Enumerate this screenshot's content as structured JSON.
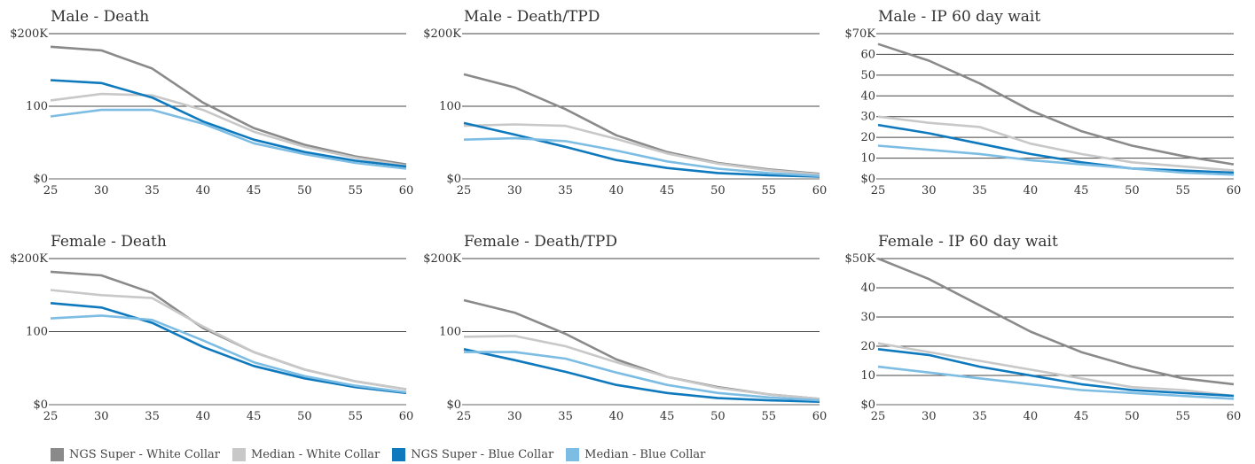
{
  "legend": [
    {
      "label": "NGS Super - White Collar",
      "color": "#8a8a8a"
    },
    {
      "label": "Median - White Collar",
      "color": "#c8c8c8"
    },
    {
      "label": "NGS Super - Blue Collar",
      "color": "#0f79bd"
    },
    {
      "label": "Median - Blue Collar",
      "color": "#7dbde3"
    }
  ],
  "chart_data": [
    {
      "type": "line",
      "title": "Male - Death",
      "x": [
        25,
        30,
        35,
        40,
        45,
        50,
        55,
        60
      ],
      "x_tick_labels": [
        "25",
        "30",
        "35",
        "40",
        "45",
        "50",
        "55",
        "60"
      ],
      "ylim": [
        0,
        200
      ],
      "y_ticks": [
        0,
        100,
        200
      ],
      "y_tick_labels": [
        "$0",
        "100",
        "$200K"
      ],
      "series": [
        {
          "name": "NGS Super - White Collar",
          "values": [
            182,
            177,
            152,
            105,
            70,
            47,
            31,
            20
          ]
        },
        {
          "name": "Median - White Collar",
          "values": [
            108,
            117,
            115,
            95,
            65,
            44,
            29,
            18
          ]
        },
        {
          "name": "NGS Super - Blue Collar",
          "values": [
            136,
            132,
            112,
            79,
            54,
            37,
            25,
            17
          ]
        },
        {
          "name": "Median - Blue Collar",
          "values": [
            86,
            95,
            95,
            76,
            49,
            34,
            22,
            14
          ]
        }
      ]
    },
    {
      "type": "line",
      "title": "Male - Death/TPD",
      "x": [
        25,
        30,
        35,
        40,
        45,
        50,
        55,
        60
      ],
      "x_tick_labels": [
        "25",
        "30",
        "35",
        "40",
        "45",
        "50",
        "55",
        "60"
      ],
      "ylim": [
        0,
        200
      ],
      "y_ticks": [
        0,
        100,
        200
      ],
      "y_tick_labels": [
        "$0",
        "100",
        "$200K"
      ],
      "series": [
        {
          "name": "NGS Super - White Collar",
          "values": [
            144,
            126,
            96,
            60,
            37,
            22,
            13,
            7
          ]
        },
        {
          "name": "Median - White Collar",
          "values": [
            73,
            75,
            73,
            55,
            35,
            21,
            12,
            6
          ]
        },
        {
          "name": "NGS Super - Blue Collar",
          "values": [
            77,
            61,
            44,
            26,
            15,
            8,
            5,
            3
          ]
        },
        {
          "name": "Median - Blue Collar",
          "values": [
            54,
            56,
            52,
            39,
            24,
            14,
            8,
            4
          ]
        }
      ]
    },
    {
      "type": "line",
      "title": "Male - IP 60 day wait",
      "x": [
        25,
        30,
        35,
        40,
        45,
        50,
        55,
        60
      ],
      "x_tick_labels": [
        "25",
        "30",
        "35",
        "40",
        "45",
        "50",
        "55",
        "60"
      ],
      "ylim": [
        0,
        70
      ],
      "y_ticks": [
        0,
        10,
        20,
        30,
        40,
        50,
        60,
        70
      ],
      "y_tick_labels": [
        "$0",
        "10",
        "20",
        "30",
        "40",
        "50",
        "60",
        "$70K"
      ],
      "series": [
        {
          "name": "NGS Super - White Collar",
          "values": [
            65,
            57,
            46,
            33,
            23,
            16,
            11,
            7
          ]
        },
        {
          "name": "Median - White Collar",
          "values": [
            30,
            27,
            25,
            17,
            12,
            8,
            6,
            4
          ]
        },
        {
          "name": "NGS Super - Blue Collar",
          "values": [
            26,
            22,
            17,
            12,
            8,
            5,
            4,
            3
          ]
        },
        {
          "name": "Median - Blue Collar",
          "values": [
            16,
            14,
            12,
            9,
            7,
            5,
            3,
            2
          ]
        }
      ]
    },
    {
      "type": "line",
      "title": "Female - Death",
      "x": [
        25,
        30,
        35,
        40,
        45,
        50,
        55,
        60
      ],
      "x_tick_labels": [
        "25",
        "30",
        "35",
        "40",
        "45",
        "50",
        "55",
        "60"
      ],
      "ylim": [
        0,
        200
      ],
      "y_ticks": [
        0,
        100,
        200
      ],
      "y_tick_labels": [
        "$0",
        "100",
        "$200K"
      ],
      "series": [
        {
          "name": "NGS Super - White Collar",
          "values": [
            182,
            177,
            153,
            105,
            72,
            48,
            32,
            21
          ]
        },
        {
          "name": "Median - White Collar",
          "values": [
            157,
            150,
            146,
            107,
            72,
            48,
            32,
            21
          ]
        },
        {
          "name": "NGS Super - Blue Collar",
          "values": [
            139,
            133,
            112,
            79,
            53,
            36,
            24,
            16
          ]
        },
        {
          "name": "Median - Blue Collar",
          "values": [
            118,
            122,
            116,
            88,
            58,
            39,
            26,
            17
          ]
        }
      ]
    },
    {
      "type": "line",
      "title": "Female - Death/TPD",
      "x": [
        25,
        30,
        35,
        40,
        45,
        50,
        55,
        60
      ],
      "x_tick_labels": [
        "25",
        "30",
        "35",
        "40",
        "45",
        "50",
        "55",
        "60"
      ],
      "ylim": [
        0,
        200
      ],
      "y_ticks": [
        0,
        100,
        200
      ],
      "y_tick_labels": [
        "$0",
        "100",
        "$200K"
      ],
      "series": [
        {
          "name": "NGS Super - White Collar",
          "values": [
            143,
            126,
            97,
            62,
            38,
            24,
            14,
            8
          ]
        },
        {
          "name": "Median - White Collar",
          "values": [
            93,
            94,
            80,
            58,
            38,
            23,
            14,
            8
          ]
        },
        {
          "name": "NGS Super - Blue Collar",
          "values": [
            76,
            61,
            45,
            27,
            16,
            9,
            6,
            4
          ]
        },
        {
          "name": "Median - Blue Collar",
          "values": [
            72,
            72,
            63,
            44,
            27,
            16,
            10,
            6
          ]
        }
      ]
    },
    {
      "type": "line",
      "title": "Female - IP 60 day wait",
      "x": [
        25,
        30,
        35,
        40,
        45,
        50,
        55,
        60
      ],
      "x_tick_labels": [
        "25",
        "30",
        "35",
        "40",
        "45",
        "50",
        "55",
        "60"
      ],
      "ylim": [
        0,
        50
      ],
      "y_ticks": [
        0,
        10,
        20,
        30,
        40,
        50
      ],
      "y_tick_labels": [
        "$0",
        "10",
        "20",
        "30",
        "40",
        "$50K"
      ],
      "series": [
        {
          "name": "NGS Super - White Collar",
          "values": [
            50,
            43,
            34,
            25,
            18,
            13,
            9,
            7
          ]
        },
        {
          "name": "Median - White Collar",
          "values": [
            21,
            18,
            15,
            12,
            9,
            6,
            5,
            3
          ]
        },
        {
          "name": "NGS Super - Blue Collar",
          "values": [
            19,
            17,
            13,
            10,
            7,
            5,
            4,
            3
          ]
        },
        {
          "name": "Median - Blue Collar",
          "values": [
            13,
            11,
            9,
            7,
            5,
            4,
            3,
            2
          ]
        }
      ]
    }
  ]
}
